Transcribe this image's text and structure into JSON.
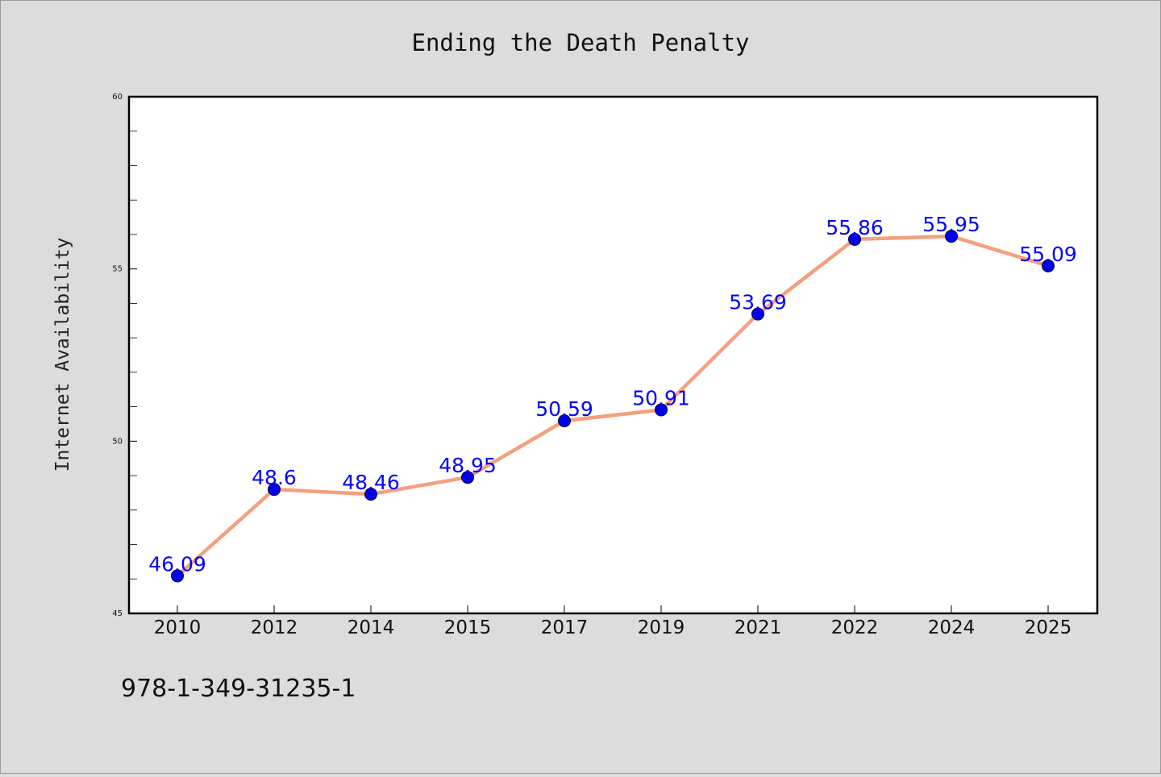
{
  "chart_data": {
    "type": "line",
    "title": "Ending the Death Penalty",
    "xlabel": "",
    "ylabel": "Internet Availability",
    "categories": [
      "2010",
      "2012",
      "2014",
      "2015",
      "2017",
      "2019",
      "2021",
      "2022",
      "2024",
      "2025"
    ],
    "series": [
      {
        "values": [
          46.09,
          48.6,
          48.46,
          48.95,
          50.59,
          50.91,
          53.69,
          55.86,
          55.95,
          55.09
        ],
        "labels": [
          "46.09",
          "48.6",
          "48.46",
          "48.95",
          "50.59",
          "50.91",
          "53.69",
          "55.86",
          "55.95",
          "55.09"
        ]
      }
    ],
    "ylim": [
      45,
      60
    ],
    "yticks": [
      "45",
      "50",
      "55",
      "60"
    ],
    "grid": false,
    "legend": "none"
  },
  "colors": {
    "background": "#dcdcdc",
    "plot_background": "#ffffff",
    "line": "#f4a07d",
    "marker": "#0000ee",
    "data_label": "#0000ff"
  },
  "footer": {
    "identifier": "978-1-349-31235-1"
  }
}
